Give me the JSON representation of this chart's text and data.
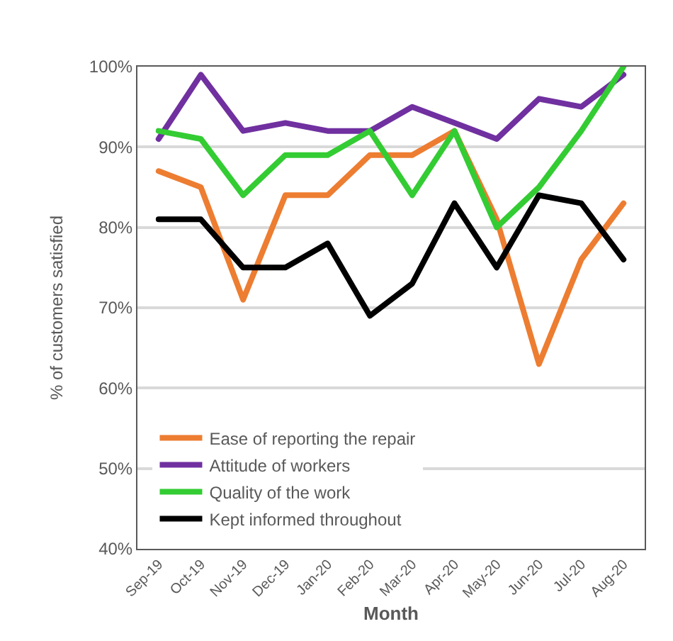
{
  "chart_data": {
    "type": "line",
    "xlabel": "Month",
    "ylabel": "% of customers satisfied",
    "categories": [
      "Sep-19",
      "Oct-19",
      "Nov-19",
      "Dec-19",
      "Jan-20",
      "Feb-20",
      "Mar-20",
      "Apr-20",
      "May-20",
      "Jun-20",
      "Jul-20",
      "Aug-20"
    ],
    "series": [
      {
        "name": "Ease of reporting the repair",
        "color": "#ed7d31",
        "values": [
          87,
          85,
          71,
          84,
          84,
          89,
          89,
          92,
          81,
          63,
          76,
          83
        ]
      },
      {
        "name": "Attitude of workers",
        "color": "#7030a0",
        "values": [
          91,
          99,
          92,
          93,
          92,
          92,
          95,
          93,
          91,
          96,
          95,
          99
        ]
      },
      {
        "name": "Quality of the work",
        "color": "#33cc33",
        "values": [
          92,
          91,
          84,
          89,
          89,
          92,
          84,
          92,
          80,
          85,
          92,
          100
        ]
      },
      {
        "name": "Kept informed throughout",
        "color": "#000000",
        "values": [
          81,
          81,
          75,
          75,
          78,
          69,
          73,
          83,
          75,
          84,
          83,
          76
        ]
      }
    ],
    "ylim": [
      40,
      100
    ],
    "yticks": [
      {
        "value": 40,
        "label": "40%"
      },
      {
        "value": 50,
        "label": "50%"
      },
      {
        "value": 60,
        "label": "60%"
      },
      {
        "value": 70,
        "label": "70%"
      },
      {
        "value": 80,
        "label": "80%"
      },
      {
        "value": 90,
        "label": "90%"
      },
      {
        "value": 100,
        "label": "100%"
      }
    ],
    "grid": "y",
    "legend": "bottom left",
    "marker": "none",
    "line_style": "solid"
  }
}
